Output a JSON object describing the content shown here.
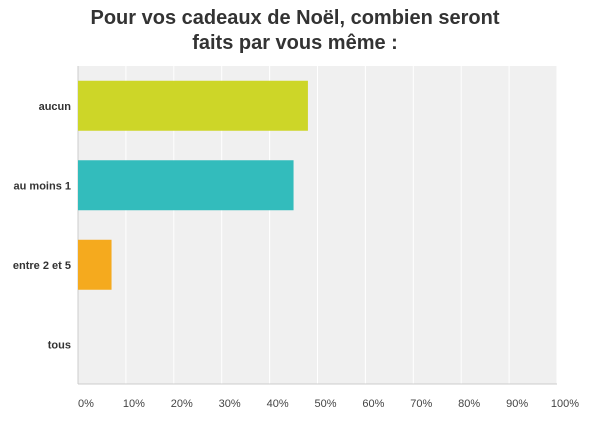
{
  "chart_data": {
    "type": "bar",
    "orientation": "horizontal",
    "title_lines": [
      "Pour vos cadeaux de Noël, combien seront",
      "faits par vous même :"
    ],
    "categories": [
      "aucun",
      "au moins 1",
      "entre 2 et 5",
      "tous"
    ],
    "values": [
      48,
      45,
      7,
      0
    ],
    "colors": [
      "#cdd628",
      "#33bcbc",
      "#f5aa1e",
      "#9b59b6"
    ],
    "xlim": [
      0,
      100
    ],
    "xticks": [
      "0%",
      "10%",
      "20%",
      "30%",
      "40%",
      "50%",
      "60%",
      "70%",
      "80%",
      "90%",
      "100%"
    ],
    "grid": true,
    "background_color": "#f0f0f0",
    "grid_color": "#ffffff"
  }
}
